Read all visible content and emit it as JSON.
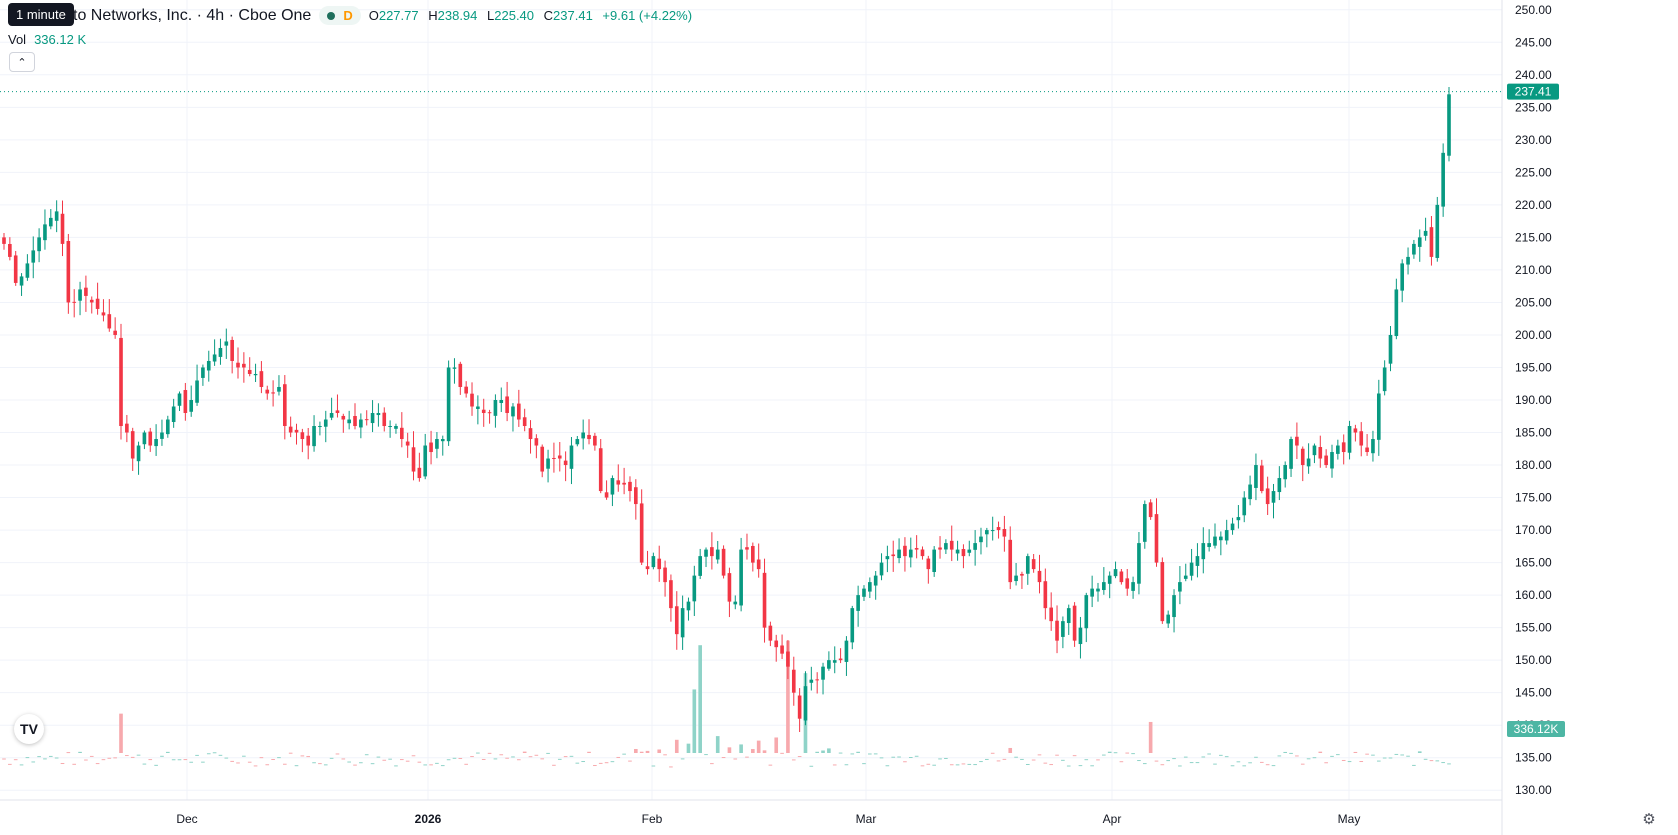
{
  "legend": {
    "tooltip": "1 minute",
    "title": "to Networks, Inc. · 4h · Cboe One",
    "flag": "D",
    "open_label": "O",
    "open": "227.77",
    "high_label": "H",
    "high": "238.94",
    "low_label": "L",
    "low": "225.40",
    "close_label": "C",
    "close": "237.41",
    "change": "+9.61 (+4.22%)",
    "vol_label": "Vol",
    "vol_value": "336.12 K",
    "collapse_icon": "chevron-up-icon"
  },
  "colors": {
    "up": "#089981",
    "down": "#f23645",
    "up_vol": "#8fd3c8",
    "down_vol": "#f7a9ad",
    "grid": "#f0f3fa",
    "axis_text": "#131722"
  },
  "chart_data": {
    "type": "candlestick",
    "interval": "4h",
    "ylim": [
      128.5,
      251.5
    ],
    "yticks": [
      "250.00",
      "245.00",
      "240.00",
      "235.00",
      "230.00",
      "225.00",
      "220.00",
      "215.00",
      "210.00",
      "205.00",
      "200.00",
      "195.00",
      "190.00",
      "185.00",
      "180.00",
      "175.00",
      "170.00",
      "165.00",
      "160.00",
      "155.00",
      "150.00",
      "145.00",
      "140.00",
      "135.00",
      "130.00"
    ],
    "xticks": [
      "Dec",
      "2026",
      "Feb",
      "Mar",
      "Apr",
      "May"
    ],
    "last_price_label": "237.41",
    "last_volume_label": "336.12K",
    "grid": true,
    "closes": [
      214,
      212,
      208,
      209,
      211,
      213,
      215,
      217,
      218,
      219,
      214,
      205,
      205,
      207,
      206,
      205,
      204,
      203,
      201,
      200,
      186,
      185,
      181,
      183,
      185,
      183,
      184,
      185,
      187,
      189,
      191,
      188,
      190,
      193,
      195,
      196,
      197,
      198,
      199,
      196,
      195,
      195,
      194,
      194,
      192,
      191,
      191,
      192,
      186,
      185,
      185,
      184,
      183,
      186,
      186,
      187,
      188,
      188,
      187,
      187,
      186,
      187,
      187,
      188,
      188,
      186,
      186,
      186,
      184,
      183,
      179,
      178,
      183,
      182,
      184,
      184,
      195,
      195,
      192,
      191,
      189,
      189,
      188,
      188,
      190,
      190,
      188,
      189,
      187,
      186,
      184,
      183,
      179,
      181,
      181,
      181,
      180,
      183,
      184,
      185,
      184,
      183,
      176,
      175,
      178,
      177,
      177,
      176,
      174,
      165,
      164,
      166,
      164,
      162,
      158,
      154,
      158,
      159,
      163,
      166,
      167,
      166,
      167,
      163,
      159,
      159,
      167,
      167,
      165,
      164,
      155,
      153,
      152,
      151,
      149,
      145,
      141,
      146,
      147,
      147,
      149,
      150,
      150,
      150,
      153,
      158,
      160,
      161,
      162,
      163,
      165,
      166,
      166,
      167,
      166,
      167,
      167,
      166,
      164,
      167,
      167,
      168,
      167,
      167,
      166,
      167,
      168,
      169,
      170,
      170,
      170,
      169,
      162,
      163,
      163,
      166,
      164,
      162,
      158,
      156,
      153,
      156,
      158,
      153,
      155,
      160,
      161,
      161,
      162,
      163,
      164,
      162,
      161,
      162,
      168,
      174,
      172,
      165,
      156,
      157,
      160,
      162,
      163,
      165,
      166,
      168,
      168,
      169,
      169,
      170,
      171,
      172,
      175,
      177,
      180,
      176,
      174,
      176,
      178,
      180,
      184,
      183,
      180,
      181,
      183,
      181,
      180,
      182,
      183,
      182,
      186,
      185,
      183,
      182,
      184,
      191,
      195,
      200,
      207,
      211,
      212,
      214,
      215,
      216,
      212,
      220,
      228,
      237
    ],
    "volume_description": "Volume histogram shares the price pane bottom; spikes up to 152.5 on the price scale near Feb"
  }
}
